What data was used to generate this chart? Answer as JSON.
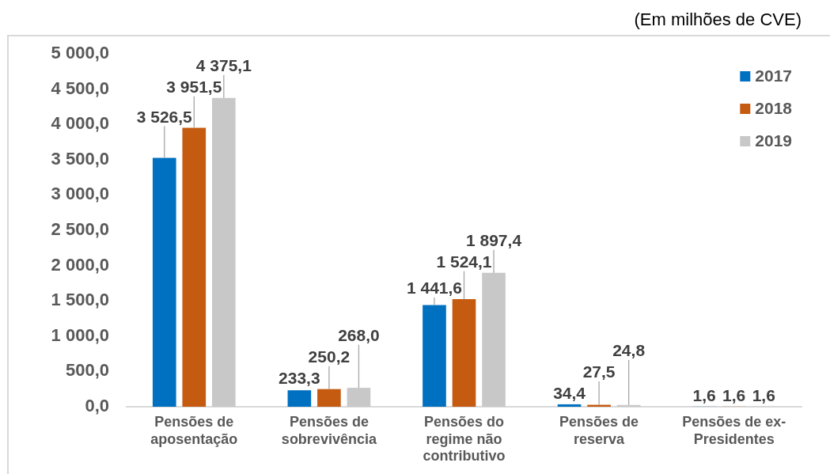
{
  "chart_data": {
    "type": "bar",
    "annotations": [
      "(Em milhões de CVE)"
    ],
    "categories": [
      "Pensões de aposentação",
      "Pensões de sobrevivência",
      "Pensões do regime não contributivo",
      "Pensões de reserva",
      "Pensões de ex-Presidentes"
    ],
    "series": [
      {
        "name": "2017",
        "color": "#0070c0",
        "values": [
          3526.5,
          233.3,
          1441.6,
          34.4,
          1.6
        ],
        "value_labels": [
          "3 526,5",
          "233,3",
          "1 441,6",
          "34,4",
          "1,6"
        ]
      },
      {
        "name": "2018",
        "color": "#c55a11",
        "values": [
          3951.5,
          250.2,
          1524.1,
          27.5,
          1.6
        ],
        "value_labels": [
          "3 951,5",
          "250,2",
          "1 524,1",
          "27,5",
          "1,6"
        ]
      },
      {
        "name": "2019",
        "color": "#c8c8c8",
        "values": [
          4375.1,
          268.0,
          1897.4,
          24.8,
          1.6
        ],
        "value_labels": [
          "4 375,1",
          "268,0",
          "1 897,4",
          "24,8",
          "1,6"
        ]
      }
    ],
    "ylim": [
      0,
      5000
    ],
    "yticks": [
      {
        "value": 0,
        "label": "0,0"
      },
      {
        "value": 500,
        "label": "500,0"
      },
      {
        "value": 1000,
        "label": "1 000,0"
      },
      {
        "value": 1500,
        "label": "1 500,0"
      },
      {
        "value": 2000,
        "label": "2 000,0"
      },
      {
        "value": 2500,
        "label": "2 500,0"
      },
      {
        "value": 3000,
        "label": "3 000,0"
      },
      {
        "value": 3500,
        "label": "3 500,0"
      },
      {
        "value": 4000,
        "label": "4 000,0"
      },
      {
        "value": 4500,
        "label": "4 500,0"
      },
      {
        "value": 5000,
        "label": "5 000,0"
      }
    ],
    "legend": "top right"
  }
}
